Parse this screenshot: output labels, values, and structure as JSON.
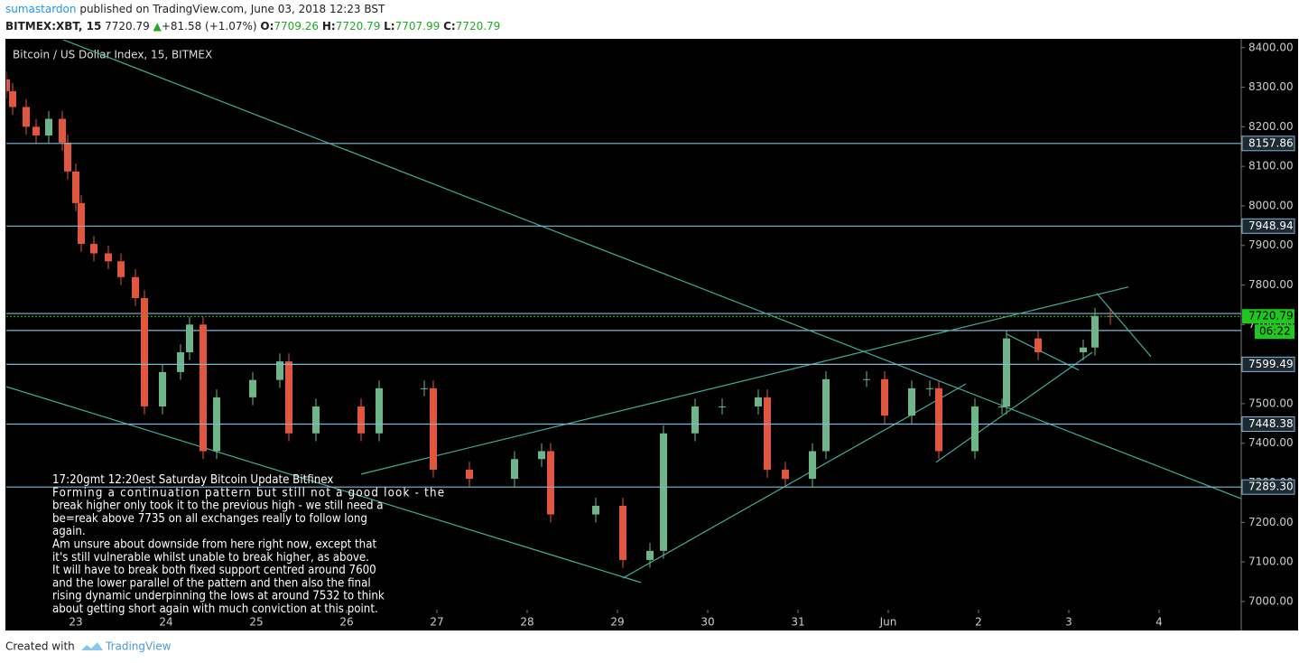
{
  "header": {
    "author": "sumastardon",
    "published": "published on TradingView.com, June 03, 2018 12:23 BST",
    "symbol": "BITMEX:XBT, 15",
    "price": "7720.79",
    "arrow": "▲",
    "change": "+81.58 (+1.07%)",
    "ohlc": [
      {
        "key": "O:",
        "value": "7709.26"
      },
      {
        "key": "H:",
        "value": "7720.79"
      },
      {
        "key": "L:",
        "value": "7707.99"
      },
      {
        "key": "C:",
        "value": "7720.79"
      }
    ]
  },
  "footer": {
    "created": "Created with",
    "brand": "TradingView"
  },
  "chart_data": {
    "type": "candlestick",
    "title": "Bitcoin / US Dollar Index, 15, BITMEX",
    "x": [
      -0.77,
      -0.7,
      -0.55,
      -0.44,
      -0.3,
      -0.15,
      -0.09,
      0,
      0.06,
      0.2,
      0.36,
      0.5,
      0.66,
      0.76,
      0.96,
      1.16,
      1.26,
      1.41,
      1.56,
      1.96,
      2.26,
      2.36,
      2.66,
      3.16,
      3.36,
      3.86,
      3.96,
      4.36,
      4.86,
      5.16,
      5.26,
      5.76,
      6.06,
      6.36,
      6.51,
      6.86,
      7.16,
      7.56,
      7.66,
      7.86,
      8.16,
      8.31,
      8.76,
      8.96,
      9.26,
      9.46,
      9.56,
      9.96,
      10.26,
      10.31,
      10.66,
      11.16,
      11.29,
      11.46
    ],
    "open": [
      8320,
      8290,
      8250,
      8200,
      8178,
      8220,
      8160,
      8087,
      8007,
      7904,
      7880,
      7860,
      7820,
      7767,
      7493,
      7580,
      7630,
      7700,
      7380,
      7516,
      7560,
      7607,
      7425,
      7493,
      7425,
      7539,
      7539,
      7333,
      7310,
      7360,
      7380,
      7220,
      7242,
      7105,
      7128,
      7425,
      7493,
      7493,
      7516,
      7333,
      7310,
      7380,
      7562,
      7562,
      7470,
      7539,
      7539,
      7380,
      7493,
      7493,
      7665,
      7630,
      7642,
      7722
    ],
    "high": [
      8340,
      8310,
      8270,
      8220,
      8240,
      8240,
      8180,
      8107,
      8027,
      7924,
      7900,
      7880,
      7840,
      7787,
      7600,
      7650,
      7720,
      7720,
      7536,
      7580,
      7627,
      7627,
      7513,
      7513,
      7559,
      7559,
      7559,
      7353,
      7380,
      7400,
      7400,
      7262,
      7262,
      7148,
      7445,
      7513,
      7513,
      7536,
      7536,
      7353,
      7400,
      7582,
      7582,
      7582,
      7559,
      7559,
      7559,
      7513,
      7513,
      7685,
      7685,
      7662,
      7742,
      7742
    ],
    "low": [
      8270,
      8230,
      8180,
      8158,
      8158,
      8140,
      8067,
      7987,
      7884,
      7860,
      7840,
      7800,
      7747,
      7473,
      7473,
      7560,
      7610,
      7360,
      7360,
      7496,
      7540,
      7405,
      7405,
      7405,
      7405,
      7519,
      7313,
      7290,
      7290,
      7340,
      7200,
      7200,
      7085,
      7085,
      7108,
      7405,
      7473,
      7473,
      7313,
      7290,
      7290,
      7360,
      7542,
      7450,
      7450,
      7519,
      7360,
      7360,
      7473,
      7473,
      7610,
      7610,
      7622,
      7700
    ],
    "close": [
      8290,
      8250,
      8200,
      8178,
      8220,
      8160,
      8087,
      8007,
      7904,
      7880,
      7860,
      7820,
      7767,
      7493,
      7580,
      7630,
      7700,
      7380,
      7516,
      7560,
      7607,
      7425,
      7493,
      7425,
      7539,
      7539,
      7333,
      7310,
      7360,
      7380,
      7220,
      7242,
      7105,
      7128,
      7425,
      7493,
      7493,
      7516,
      7333,
      7310,
      7380,
      7562,
      7562,
      7470,
      7539,
      7539,
      7380,
      7493,
      7493,
      7665,
      7630,
      7642,
      7722,
      7720.79
    ],
    "up_color": "#6fb58a",
    "down_color": "#e0563f",
    "xlim": [
      -0.77,
      12.91
    ],
    "ylim": [
      6929,
      8420
    ],
    "xticks": [
      {
        "value": 0,
        "label": "23"
      },
      {
        "value": 1,
        "label": "24"
      },
      {
        "value": 2,
        "label": "25"
      },
      {
        "value": 3,
        "label": "26"
      },
      {
        "value": 4,
        "label": "27"
      },
      {
        "value": 5,
        "label": "28"
      },
      {
        "value": 6,
        "label": "29"
      },
      {
        "value": 7,
        "label": "30"
      },
      {
        "value": 8,
        "label": "31"
      },
      {
        "value": 9,
        "label": "Jun"
      },
      {
        "value": 10,
        "label": "2"
      },
      {
        "value": 11,
        "label": "3"
      },
      {
        "value": 12,
        "label": "4"
      }
    ],
    "yticks": [
      {
        "value": 7000,
        "label": "7000.00"
      },
      {
        "value": 7100,
        "label": "7100.00"
      },
      {
        "value": 7200,
        "label": "7200.00"
      },
      {
        "value": 7300,
        "label": "7300.00"
      },
      {
        "value": 7400,
        "label": "7400.00"
      },
      {
        "value": 7500,
        "label": "7500.00"
      },
      {
        "value": 7600,
        "label": "7600.00"
      },
      {
        "value": 7700,
        "label": "7700.00"
      },
      {
        "value": 7800,
        "label": "7800.00"
      },
      {
        "value": 7900,
        "label": "7900.00"
      },
      {
        "value": 8000,
        "label": "8000.00"
      },
      {
        "value": 8100,
        "label": "8100.00"
      },
      {
        "value": 8200,
        "label": "8200.00"
      },
      {
        "value": 8300,
        "label": "8300.00"
      },
      {
        "value": 8400,
        "label": "8400.00"
      }
    ],
    "levels": [
      8157.86,
      7948.94,
      7599.49,
      7448.38,
      {
        "value": 7289.3,
        "label": "7289.30"
      }
    ],
    "plain_levels": [
      7728,
      7685
    ],
    "level_color": "#7fb8d6",
    "last": 7720.79,
    "last_color": "#1fc71f",
    "countdown": "06:22",
    "trend_color": "#3fae98",
    "trend_lines": [
      [
        [
          -0.14,
          8420
        ],
        [
          12.91,
          7260
        ]
      ],
      [
        [
          -0.77,
          7543
        ],
        [
          6.26,
          7048
        ]
      ],
      [
        [
          3.16,
          7322
        ],
        [
          11.66,
          7795
        ]
      ],
      [
        [
          6.06,
          7059
        ],
        [
          9.86,
          7550
        ]
      ],
      [
        [
          9.53,
          7352
        ],
        [
          11.26,
          7630
        ]
      ],
      [
        [
          10.31,
          7676
        ],
        [
          11.11,
          7585
        ]
      ],
      [
        [
          11.31,
          7779
        ],
        [
          11.91,
          7619
        ]
      ]
    ],
    "annotation": [
      "17:20gmt 12:20est Saturday  Bitcoin Update Bitfinex",
      "Forming a continuation pattern  but still not a good look - the",
      "break higher only took it to the previous high - we still need a",
      "be=reak above 7735 on all exchanges really to follow long",
      "again.",
      "Am unsure about downside from here right now, except that",
      "it's still vulnerable whilst unable to break higher, as above.",
      "It will have to break both fixed support centred around 7600",
      "and the lower parallel of the pattern and then also the final",
      "rising dynamic underpinning the lows at around 7532 to think",
      "about getting short again with much conviction at this point."
    ]
  }
}
